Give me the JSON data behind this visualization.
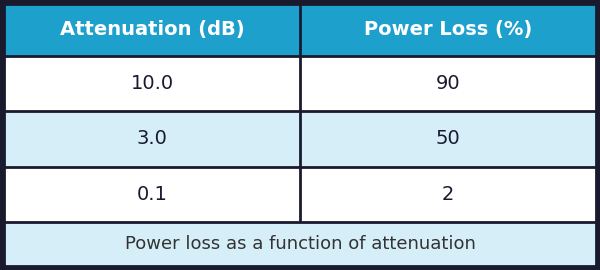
{
  "col_headers": [
    "Attenuation (dB)",
    "Power Loss (%)"
  ],
  "rows": [
    [
      "10.0",
      "90"
    ],
    [
      "3.0",
      "50"
    ],
    [
      "0.1",
      "2"
    ]
  ],
  "footer": "Power loss as a function of attenuation",
  "header_bg": "#1EA0CC",
  "header_text_color": "#FFFFFF",
  "row_bg_odd": "#FFFFFF",
  "row_bg_even": "#D6EEF7",
  "footer_bg": "#D6EEF7",
  "footer_text_color": "#333333",
  "border_color": "#1A1A2E",
  "data_text_color": "#1A1A2E",
  "header_fontsize": 14,
  "data_fontsize": 14,
  "footer_fontsize": 13,
  "fig_bg": "#1A1A2E"
}
